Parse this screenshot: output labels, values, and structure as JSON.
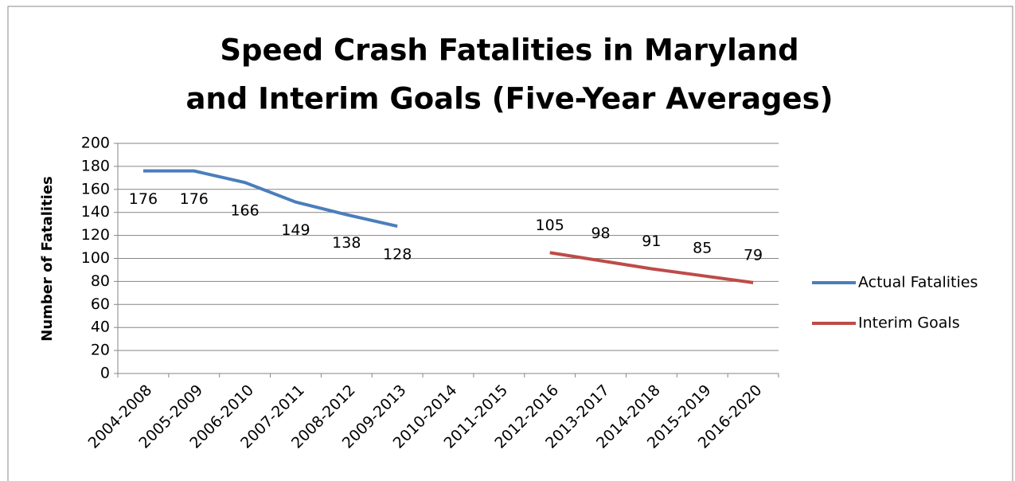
{
  "chart_data": {
    "type": "line",
    "title": [
      "Speed Crash Fatalities in Maryland",
      "and Interim Goals (Five-Year Averages)"
    ],
    "y_label": "Number of Fatalities",
    "categories": [
      "2004-2008",
      "2005-2009",
      "2006-2010",
      "2007-2011",
      "2008-2012",
      "2009-2013",
      "2010-2014",
      "2011-2015",
      "2012-2016",
      "2013-2017",
      "2014-2018",
      "2015-2019",
      "2016-2020"
    ],
    "series": [
      {
        "name": "Actual Fatalities",
        "color": "#4a7ebb",
        "label_side": "below",
        "values": [
          176,
          176,
          166,
          149,
          138,
          128,
          null,
          null,
          null,
          null,
          null,
          null,
          null
        ]
      },
      {
        "name": "Interim Goals",
        "color": "#be4b48",
        "label_side": "above",
        "values": [
          null,
          null,
          null,
          null,
          null,
          null,
          null,
          null,
          105,
          98,
          91,
          85,
          79
        ]
      }
    ],
    "ylim": [
      0,
      200
    ],
    "yticks": [
      0,
      20,
      40,
      60,
      80,
      100,
      120,
      140,
      160,
      180,
      200
    ],
    "grid": true,
    "legend": "right"
  }
}
